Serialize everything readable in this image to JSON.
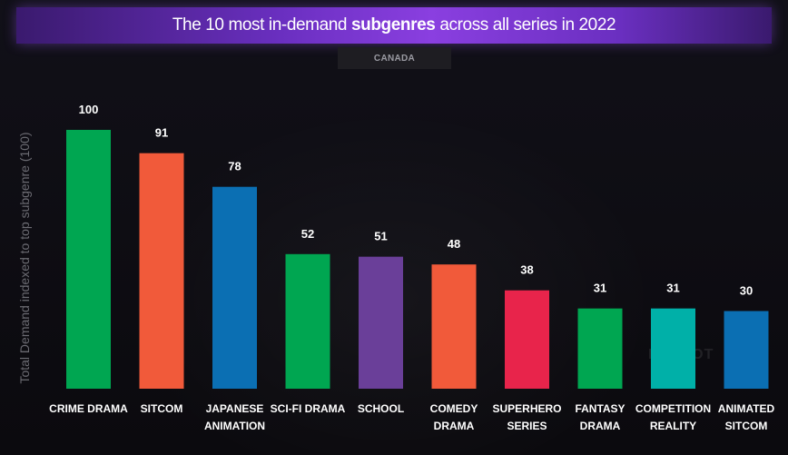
{
  "title_prefix": "The 10 most in-demand ",
  "title_bold": "subgenres",
  "title_suffix": " across all series in 2022",
  "country": "CANADA",
  "watermark": "PARROT",
  "chart_data": {
    "type": "bar",
    "ylabel": "Total Demand indexed to top subgenre (100)",
    "ylim": [
      0,
      100
    ],
    "grid": false,
    "categories": [
      [
        "CRIME DRAMA"
      ],
      [
        "SITCOM"
      ],
      [
        "JAPANESE",
        "ANIMATION"
      ],
      [
        "SCI-FI DRAMA"
      ],
      [
        "SCHOOL"
      ],
      [
        "COMEDY",
        "DRAMA"
      ],
      [
        "SUPERHERO",
        "SERIES"
      ],
      [
        "FANTASY",
        "DRAMA"
      ],
      [
        "COMPETITION",
        "REALITY"
      ],
      [
        "ANIMATED",
        "SITCOM"
      ]
    ],
    "values": [
      100,
      91,
      78,
      52,
      51,
      48,
      38,
      31,
      31,
      30
    ],
    "colors": [
      "#00a651",
      "#f15a3a",
      "#0b6fb3",
      "#00a651",
      "#6a3f99",
      "#f15a3a",
      "#e8244b",
      "#00a651",
      "#00b0a8",
      "#0b6fb3"
    ]
  }
}
